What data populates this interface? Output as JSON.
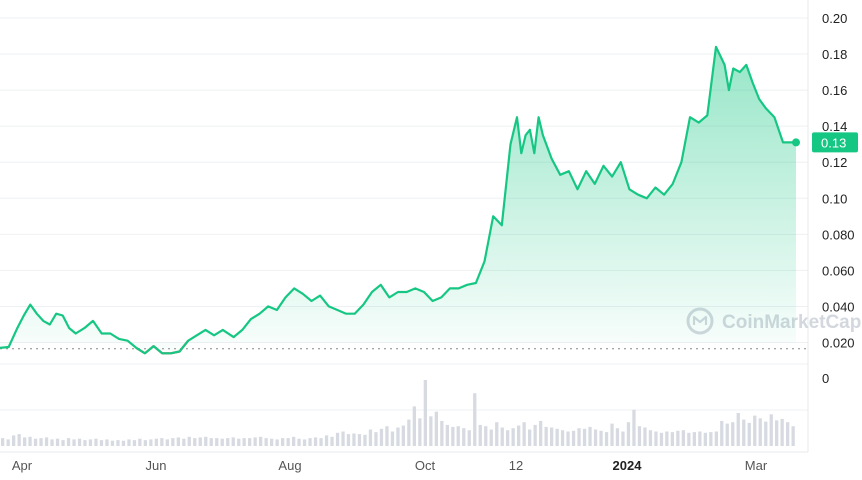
{
  "chart_data": {
    "type": "area",
    "title": "",
    "xlabel": "",
    "ylabel": "",
    "x_tick_labels": [
      "Apr",
      "Jun",
      "Aug",
      "Oct",
      "12",
      "2024",
      "Mar"
    ],
    "x_tick_bold": [
      false,
      false,
      false,
      false,
      false,
      true,
      false
    ],
    "y_tick_labels": [
      "0.20",
      "0.18",
      "0.16",
      "0.14",
      "0.12",
      "0.10",
      "0.080",
      "0.060",
      "0.040",
      "0.020"
    ],
    "ylim": [
      0.013,
      0.2
    ],
    "baseline_value": 0.0165,
    "volume_axis_label": "0",
    "current_price_label": "0.13",
    "current_price": 0.131,
    "watermark": "CoinMarketCap",
    "colors": {
      "up": "#16c784",
      "down": "#ea3943",
      "badge": "#16c784"
    },
    "series": [
      {
        "x": [
          "2023-03-14",
          "2023-03-18",
          "2023-03-22",
          "2023-03-25",
          "2023-03-28",
          "2023-03-31",
          "2023-04-03",
          "2023-04-06",
          "2023-04-09",
          "2023-04-12",
          "2023-04-15",
          "2023-04-18",
          "2023-04-22",
          "2023-04-26",
          "2023-04-30",
          "2023-05-04",
          "2023-05-08",
          "2023-05-12",
          "2023-05-16",
          "2023-05-20",
          "2023-05-24",
          "2023-05-28",
          "2023-06-01",
          "2023-06-05",
          "2023-06-09",
          "2023-06-13",
          "2023-06-17",
          "2023-06-21",
          "2023-06-25",
          "2023-06-30",
          "2023-07-04",
          "2023-07-08",
          "2023-07-12",
          "2023-07-16",
          "2023-07-20",
          "2023-07-24",
          "2023-07-28",
          "2023-08-01",
          "2023-08-05",
          "2023-08-09",
          "2023-08-13",
          "2023-08-17",
          "2023-08-21",
          "2023-08-25",
          "2023-08-29",
          "2023-09-02",
          "2023-09-06",
          "2023-09-10",
          "2023-09-14",
          "2023-09-18",
          "2023-09-22",
          "2023-09-26",
          "2023-09-30",
          "2023-10-04",
          "2023-10-08",
          "2023-10-12",
          "2023-10-16",
          "2023-10-20",
          "2023-10-24",
          "2023-10-28",
          "2023-11-01",
          "2023-11-05",
          "2023-11-08",
          "2023-11-10",
          "2023-11-12",
          "2023-11-14",
          "2023-11-16",
          "2023-11-18",
          "2023-11-20",
          "2023-11-24",
          "2023-11-28",
          "2023-12-02",
          "2023-12-06",
          "2023-12-10",
          "2023-12-14",
          "2023-12-18",
          "2023-12-22",
          "2023-12-26",
          "2023-12-30",
          "2024-01-03",
          "2024-01-07",
          "2024-01-11",
          "2024-01-15",
          "2024-01-19",
          "2024-01-23",
          "2024-01-27",
          "2024-01-31",
          "2024-02-04",
          "2024-02-08",
          "2024-02-12",
          "2024-02-14",
          "2024-02-16",
          "2024-02-19",
          "2024-02-22",
          "2024-02-25",
          "2024-02-28",
          "2024-03-02",
          "2024-03-06",
          "2024-03-10",
          "2024-03-14",
          "2024-03-16"
        ],
        "y": [
          0.017,
          0.0175,
          0.028,
          0.035,
          0.041,
          0.036,
          0.032,
          0.03,
          0.036,
          0.035,
          0.028,
          0.025,
          0.028,
          0.032,
          0.025,
          0.025,
          0.022,
          0.021,
          0.017,
          0.014,
          0.018,
          0.014,
          0.014,
          0.015,
          0.021,
          0.024,
          0.027,
          0.024,
          0.027,
          0.023,
          0.027,
          0.033,
          0.036,
          0.04,
          0.038,
          0.045,
          0.05,
          0.047,
          0.043,
          0.046,
          0.04,
          0.038,
          0.036,
          0.036,
          0.041,
          0.048,
          0.052,
          0.045,
          0.048,
          0.048,
          0.05,
          0.048,
          0.043,
          0.045,
          0.05,
          0.05,
          0.052,
          0.053,
          0.065,
          0.09,
          0.085,
          0.13,
          0.145,
          0.125,
          0.135,
          0.138,
          0.125,
          0.145,
          0.135,
          0.122,
          0.113,
          0.115,
          0.105,
          0.115,
          0.108,
          0.118,
          0.112,
          0.12,
          0.105,
          0.102,
          0.1,
          0.106,
          0.102,
          0.108,
          0.12,
          0.145,
          0.142,
          0.146,
          0.184,
          0.174,
          0.16,
          0.172,
          0.17,
          0.174,
          0.164,
          0.155,
          0.15,
          0.145,
          0.131,
          0.131,
          0.131
        ]
      }
    ],
    "volume": [
      0.12,
      0.1,
      0.16,
      0.18,
      0.13,
      0.14,
      0.11,
      0.12,
      0.13,
      0.1,
      0.11,
      0.09,
      0.12,
      0.1,
      0.11,
      0.09,
      0.1,
      0.11,
      0.09,
      0.1,
      0.08,
      0.09,
      0.08,
      0.1,
      0.09,
      0.11,
      0.09,
      0.1,
      0.11,
      0.12,
      0.1,
      0.12,
      0.13,
      0.11,
      0.14,
      0.12,
      0.13,
      0.14,
      0.12,
      0.12,
      0.11,
      0.12,
      0.13,
      0.11,
      0.12,
      0.12,
      0.13,
      0.14,
      0.12,
      0.11,
      0.1,
      0.12,
      0.12,
      0.14,
      0.11,
      0.1,
      0.12,
      0.13,
      0.12,
      0.16,
      0.14,
      0.2,
      0.22,
      0.18,
      0.19,
      0.18,
      0.17,
      0.25,
      0.21,
      0.26,
      0.3,
      0.22,
      0.28,
      0.31,
      0.4,
      0.6,
      0.42,
      1.0,
      0.45,
      0.52,
      0.38,
      0.32,
      0.29,
      0.3,
      0.27,
      0.24,
      0.8,
      0.32,
      0.3,
      0.25,
      0.36,
      0.28,
      0.24,
      0.27,
      0.31,
      0.36,
      0.25,
      0.32,
      0.38,
      0.29,
      0.28,
      0.26,
      0.24,
      0.22,
      0.23,
      0.27,
      0.26,
      0.29,
      0.25,
      0.23,
      0.21,
      0.34,
      0.27,
      0.22,
      0.36,
      0.55,
      0.3,
      0.28,
      0.24,
      0.22,
      0.2,
      0.22,
      0.21,
      0.23,
      0.24,
      0.2,
      0.21,
      0.22,
      0.2,
      0.21,
      0.22,
      0.38,
      0.34,
      0.36,
      0.5,
      0.4,
      0.35,
      0.46,
      0.42,
      0.37,
      0.48,
      0.39,
      0.41,
      0.36,
      0.3
    ],
    "volume_label_positions_note": ""
  }
}
